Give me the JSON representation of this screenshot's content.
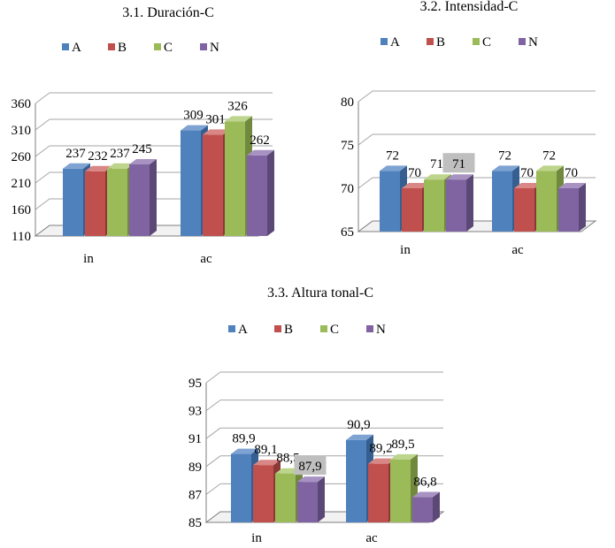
{
  "legend_letters": [
    "A",
    "B",
    "C",
    "N"
  ],
  "colors": {
    "A": {
      "front": "#4f81bd",
      "side": "#365f91",
      "top": "#7ea3d2"
    },
    "B": {
      "front": "#c0504d",
      "side": "#8c3836",
      "top": "#d98785"
    },
    "C": {
      "front": "#9bbb59",
      "side": "#71893f",
      "top": "#bcd48b"
    },
    "N": {
      "front": "#8064a2",
      "side": "#5c4876",
      "top": "#a792c2"
    }
  },
  "chart_data": [
    {
      "type": "bar",
      "title": "3.1. Duración-C",
      "categories": [
        "in",
        "ac"
      ],
      "ylim": [
        110,
        360
      ],
      "yticks": [
        110,
        160,
        210,
        260,
        310,
        360
      ],
      "grid": true,
      "legend": "top",
      "series": [
        {
          "name": "A",
          "values": [
            237,
            309
          ],
          "labels": [
            "237",
            "309"
          ]
        },
        {
          "name": "B",
          "values": [
            232,
            301
          ],
          "labels": [
            "232",
            "301"
          ]
        },
        {
          "name": "C",
          "values": [
            237,
            326
          ],
          "labels": [
            "237",
            "326"
          ]
        },
        {
          "name": "N",
          "values": [
            245,
            262
          ],
          "labels": [
            "245",
            "262"
          ]
        }
      ]
    },
    {
      "type": "bar",
      "title": "3.2. Intensidad-C",
      "categories": [
        "in",
        "ac"
      ],
      "ylim": [
        65,
        80
      ],
      "yticks": [
        65,
        70,
        75,
        80
      ],
      "grid": true,
      "legend": "top",
      "series": [
        {
          "name": "A",
          "values": [
            72,
            72
          ],
          "labels": [
            "72",
            "72"
          ]
        },
        {
          "name": "B",
          "values": [
            70,
            70
          ],
          "labels": [
            "70",
            "70"
          ]
        },
        {
          "name": "C",
          "values": [
            71,
            72
          ],
          "labels": [
            "71",
            "72"
          ]
        },
        {
          "name": "N",
          "values": [
            71,
            70
          ],
          "labels": [
            "71",
            "70"
          ]
        }
      ],
      "highlighted_labels": [
        {
          "series": "N",
          "category": "in"
        }
      ]
    },
    {
      "type": "bar",
      "title": "3.3. Altura tonal-C",
      "categories": [
        "in",
        "ac"
      ],
      "ylim": [
        85,
        95
      ],
      "yticks": [
        85,
        87,
        89,
        91,
        93,
        95
      ],
      "grid": true,
      "legend": "top",
      "series": [
        {
          "name": "A",
          "values": [
            89.9,
            90.9
          ],
          "labels": [
            "89,9",
            "90,9"
          ]
        },
        {
          "name": "B",
          "values": [
            89.1,
            89.2
          ],
          "labels": [
            "89,1",
            "89,2"
          ]
        },
        {
          "name": "C",
          "values": [
            88.5,
            89.5
          ],
          "labels": [
            "88,5",
            "89,5"
          ]
        },
        {
          "name": "N",
          "values": [
            87.9,
            86.8
          ],
          "labels": [
            "87,9",
            "86,8"
          ]
        }
      ],
      "highlighted_labels": [
        {
          "series": "N",
          "category": "in"
        }
      ]
    }
  ]
}
